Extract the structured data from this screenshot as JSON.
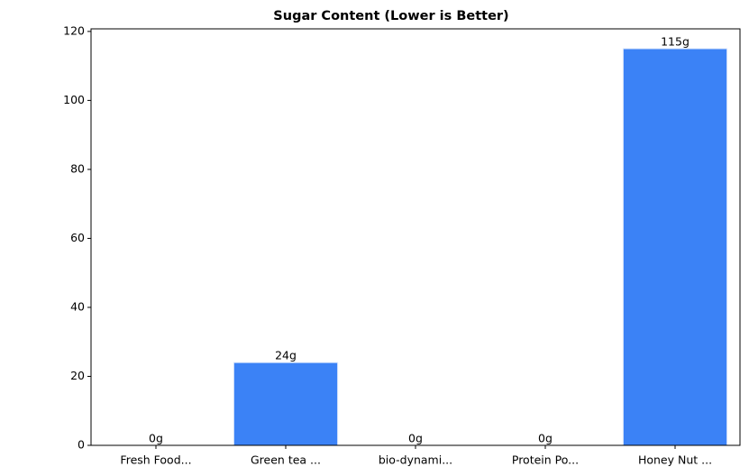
{
  "chart_data": {
    "type": "bar",
    "title": "Sugar Content (Lower is Better)",
    "categories": [
      "Fresh Food...",
      "Green tea ...",
      "bio-dynami...",
      "Protein Po...",
      "Honey Nut ..."
    ],
    "values": [
      0,
      24,
      0,
      0,
      115
    ],
    "value_labels": [
      "0g",
      "24g",
      "0g",
      "0g",
      "115g"
    ],
    "color": "#3b82f6",
    "ylim": [
      0,
      120.75
    ],
    "yticks": [
      0,
      20,
      40,
      60,
      80,
      100,
      120
    ],
    "grid": false
  }
}
